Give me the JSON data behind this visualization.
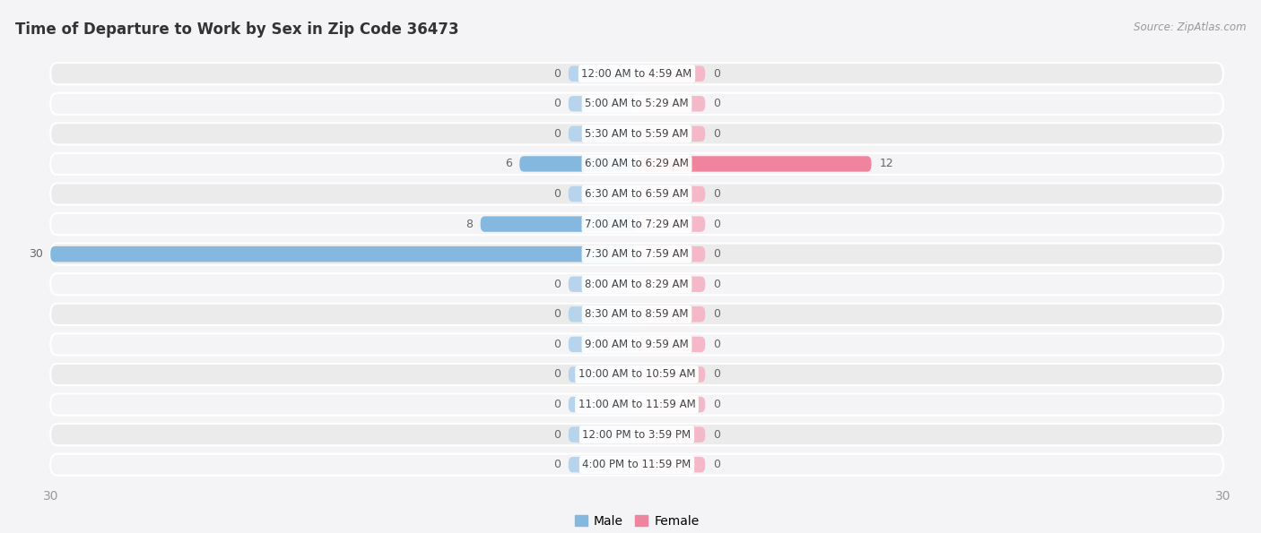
{
  "title": "Time of Departure to Work by Sex in Zip Code 36473",
  "source": "Source: ZipAtlas.com",
  "categories": [
    "12:00 AM to 4:59 AM",
    "5:00 AM to 5:29 AM",
    "5:30 AM to 5:59 AM",
    "6:00 AM to 6:29 AM",
    "6:30 AM to 6:59 AM",
    "7:00 AM to 7:29 AM",
    "7:30 AM to 7:59 AM",
    "8:00 AM to 8:29 AM",
    "8:30 AM to 8:59 AM",
    "9:00 AM to 9:59 AM",
    "10:00 AM to 10:59 AM",
    "11:00 AM to 11:59 AM",
    "12:00 PM to 3:59 PM",
    "4:00 PM to 11:59 PM"
  ],
  "male_values": [
    0,
    0,
    0,
    6,
    0,
    8,
    30,
    0,
    0,
    0,
    0,
    0,
    0,
    0
  ],
  "female_values": [
    0,
    0,
    0,
    12,
    0,
    0,
    0,
    0,
    0,
    0,
    0,
    0,
    0,
    0
  ],
  "male_color": "#85b8df",
  "female_color": "#f0849e",
  "male_stub_color": "#b8d4ec",
  "female_stub_color": "#f5b8c8",
  "male_label": "Male",
  "female_label": "Female",
  "xlim": 30,
  "row_color_odd": "#ebebeb",
  "row_color_even": "#f4f4f6",
  "bg_color": "#f4f4f6",
  "value_label_color": "#666666",
  "value_label_color_on_bar": "#ffffff",
  "title_color": "#333333",
  "source_color": "#999999",
  "axis_tick_color": "#999999",
  "stub_size": 3.5,
  "cat_label_fontsize": 8.5,
  "val_label_fontsize": 9
}
